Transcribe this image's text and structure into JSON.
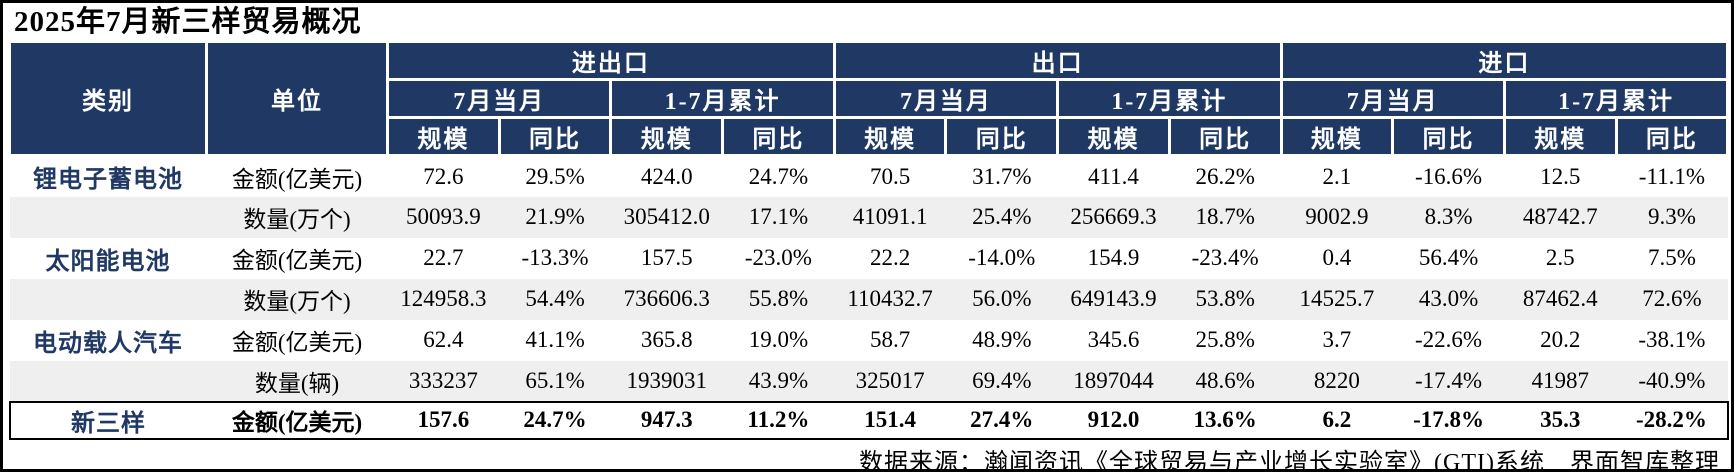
{
  "title": "2025年7月新三样贸易概况",
  "source_note": "数据来源：瀚闻资讯《全球贸易与产业增长实验室》(GTI)系统　界面智库整理",
  "colors": {
    "header_bg": "#1F3864",
    "header_text": "#FFFFFF",
    "category_text": "#1F3864",
    "zebra_row_bg": "#EFEFEF",
    "total_row_border": "#000000"
  },
  "chart_data": {
    "type": "table",
    "title": "2025年7月新三样贸易概况",
    "corner_headers": [
      "类别",
      "单位"
    ],
    "column_groups": [
      "进出口",
      "出口",
      "进口"
    ],
    "period_labels": [
      "7月当月",
      "1-7月累计"
    ],
    "metric_labels": [
      "规模",
      "同比"
    ],
    "rows": [
      {
        "category": "锂电子蓄电池",
        "unit": "金额(亿美元)",
        "total": false,
        "values": [
          "72.6",
          "29.5%",
          "424.0",
          "24.7%",
          "70.5",
          "31.7%",
          "411.4",
          "26.2%",
          "2.1",
          "-16.6%",
          "12.5",
          "-11.1%"
        ]
      },
      {
        "category": "",
        "unit": "数量(万个)",
        "total": false,
        "values": [
          "50093.9",
          "21.9%",
          "305412.0",
          "17.1%",
          "41091.1",
          "25.4%",
          "256669.3",
          "18.7%",
          "9002.9",
          "8.3%",
          "48742.7",
          "9.3%"
        ]
      },
      {
        "category": "太阳能电池",
        "unit": "金额(亿美元)",
        "total": false,
        "values": [
          "22.7",
          "-13.3%",
          "157.5",
          "-23.0%",
          "22.2",
          "-14.0%",
          "154.9",
          "-23.4%",
          "0.4",
          "56.4%",
          "2.5",
          "7.5%"
        ]
      },
      {
        "category": "",
        "unit": "数量(万个)",
        "total": false,
        "values": [
          "124958.3",
          "54.4%",
          "736606.3",
          "55.8%",
          "110432.7",
          "56.0%",
          "649143.9",
          "53.8%",
          "14525.7",
          "43.0%",
          "87462.4",
          "72.6%"
        ]
      },
      {
        "category": "电动载人汽车",
        "unit": "金额(亿美元)",
        "total": false,
        "values": [
          "62.4",
          "41.1%",
          "365.8",
          "19.0%",
          "58.7",
          "48.9%",
          "345.6",
          "25.8%",
          "3.7",
          "-22.6%",
          "20.2",
          "-38.1%"
        ]
      },
      {
        "category": "",
        "unit": "数量(辆)",
        "total": false,
        "values": [
          "333237",
          "65.1%",
          "1939031",
          "43.9%",
          "325017",
          "69.4%",
          "1897044",
          "48.6%",
          "8220",
          "-17.4%",
          "41987",
          "-40.9%"
        ]
      },
      {
        "category": "新三样",
        "unit": "金额(亿美元)",
        "total": true,
        "values": [
          "157.6",
          "24.7%",
          "947.3",
          "11.2%",
          "151.4",
          "27.4%",
          "912.0",
          "13.6%",
          "6.2",
          "-17.8%",
          "35.3",
          "-28.2%"
        ]
      }
    ]
  }
}
